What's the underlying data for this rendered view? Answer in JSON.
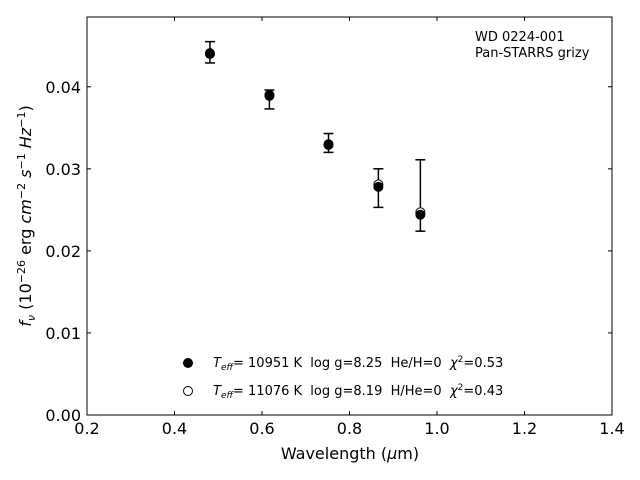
{
  "chart_data": {
    "type": "scatter",
    "title": "",
    "xlabel": "Wavelength (μm)",
    "ylabel": "f_ν (10^-26 erg cm^-2 s^-1 Hz^-1)",
    "xlim": [
      0.2,
      1.4
    ],
    "ylim": [
      0.0,
      0.0485
    ],
    "x_ticks": [
      "0.2",
      "0.4",
      "0.6",
      "0.8",
      "1.0",
      "1.2",
      "1.4"
    ],
    "y_ticks": [
      "0.00",
      "0.01",
      "0.02",
      "0.03",
      "0.04"
    ],
    "grid": false,
    "legend_position": "bottom-center",
    "annotation": [
      "WD 0224-001",
      "Pan-STARRS grizy"
    ],
    "observed": {
      "x": [
        0.481,
        0.617,
        0.752,
        0.866,
        0.962
      ],
      "y": [
        0.0441,
        0.0385,
        0.0331,
        0.0277,
        0.0267
      ],
      "err_lo": [
        0.0012,
        0.0012,
        0.0011,
        0.0024,
        0.0043
      ],
      "err_hi": [
        0.0014,
        0.0011,
        0.0012,
        0.0023,
        0.0044
      ]
    },
    "series": [
      {
        "name": "Teff= 10951 K  log g=8.25  He/H=0  χ²=0.53",
        "marker": "filled-circle",
        "x": [
          0.481,
          0.617,
          0.752,
          0.866,
          0.962
        ],
        "y": [
          0.044,
          0.0389,
          0.0329,
          0.0278,
          0.0244
        ]
      },
      {
        "name": "Teff= 11076 K  log g=8.19  H/He=0  χ²=0.43",
        "marker": "open-circle",
        "x": [
          0.481,
          0.617,
          0.752,
          0.866,
          0.962
        ],
        "y": [
          0.0441,
          0.039,
          0.033,
          0.0281,
          0.0247
        ]
      }
    ]
  },
  "legend": {
    "entries": [
      {
        "teff": "T",
        "teff_sub": "eff",
        "rest": "= 10951 K  log g=8.25  He/H=0  ",
        "chi": "χ",
        "chi_sup": "2",
        "chi_val": "=0.53"
      },
      {
        "teff": "T",
        "teff_sub": "eff",
        "rest": "= 11076 K  log g=8.19  H/He=0  ",
        "chi": "χ",
        "chi_sup": "2",
        "chi_val": "=0.43"
      }
    ]
  },
  "labels": {
    "x_main": "Wavelength (",
    "x_mu": "μ",
    "x_unit": "m)",
    "y_f": "f",
    "y_nu": "ν",
    "y_open": " (10",
    "y_e1": "−26",
    "y_erg": " erg ",
    "y_cm": "cm",
    "y_e2": "−2",
    "y_s": " s",
    "y_e3": "−1",
    "y_hz": " Hz",
    "y_e4": "−1",
    "y_close": ")"
  },
  "colors": {
    "marker": "#000000",
    "background": "#ffffff"
  }
}
